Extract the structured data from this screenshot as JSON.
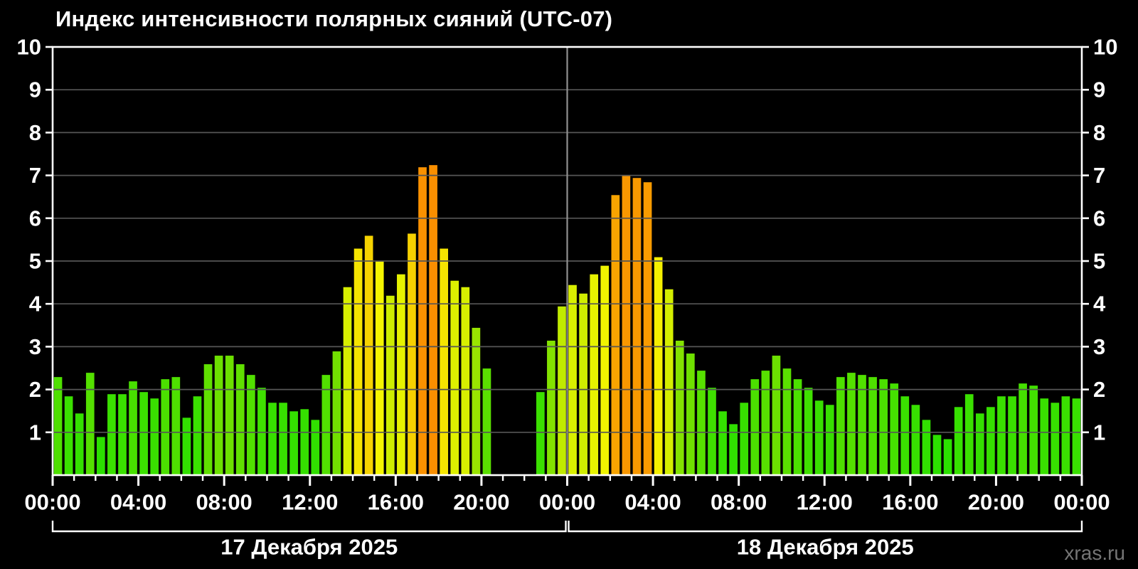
{
  "title": "Индекс интенсивности полярных сияний (UTC-07)",
  "watermark": "xras.ru",
  "colors": {
    "background": "#000000",
    "frame": "#ffffff",
    "gridline": "#565656",
    "day_separator": "#919191",
    "text": "#ffffff",
    "watermark_text": "#757575",
    "bar_low_green": "#33e200",
    "bar_mid_yellow": "#f2f000",
    "bar_gold": "#f6d000",
    "bar_peak_orange": "#f99400"
  },
  "chart_data": {
    "type": "bar",
    "title": "Индекс интенсивности полярных сияний (UTC-07)",
    "xlabel": "",
    "ylabel": "",
    "ylim": [
      0,
      10
    ],
    "y_ticks": [
      1,
      2,
      3,
      4,
      5,
      6,
      7,
      8,
      9,
      10
    ],
    "grid": "horizontal, drawn over bars",
    "legend": "none",
    "interval_minutes": 30,
    "x_tick_step_hours": 4,
    "x_tick_labels": [
      "00:00",
      "04:00",
      "08:00",
      "12:00",
      "16:00",
      "20:00",
      "00:00",
      "04:00",
      "08:00",
      "12:00",
      "16:00",
      "20:00",
      "00:00"
    ],
    "color_scale_hue_anchors": [
      [
        0,
        112
      ],
      [
        2,
        104
      ],
      [
        3,
        88
      ],
      [
        4,
        70
      ],
      [
        5,
        60
      ],
      [
        5.7,
        50
      ],
      [
        6.5,
        40
      ],
      [
        7.3,
        34
      ],
      [
        10,
        20
      ]
    ],
    "color_scale_light_anchors": [
      [
        0,
        44
      ],
      [
        3,
        44
      ],
      [
        5,
        48
      ],
      [
        7.3,
        49
      ],
      [
        10,
        49
      ]
    ],
    "days": [
      {
        "date_label": "17 Декабря 2025",
        "start_time": "00:00",
        "values": [
          2.3,
          1.85,
          1.45,
          2.4,
          0.9,
          1.9,
          1.9,
          2.2,
          1.95,
          1.8,
          2.25,
          2.3,
          1.35,
          1.85,
          2.6,
          2.8,
          2.8,
          2.6,
          2.35,
          2.05,
          1.7,
          1.7,
          1.5,
          1.55,
          1.3,
          2.35,
          2.9,
          4.4,
          5.3,
          5.6,
          5.0,
          4.2,
          4.7,
          5.65,
          7.2,
          7.25,
          5.3,
          4.55,
          4.4,
          3.45,
          2.5,
          null,
          null,
          null,
          null,
          1.95,
          3.15,
          3.95
        ]
      },
      {
        "date_label": "18 Декабря 2025",
        "start_time": "00:00",
        "values": [
          4.45,
          4.25,
          4.7,
          4.9,
          6.55,
          7.0,
          6.95,
          6.85,
          5.1,
          4.35,
          3.15,
          2.85,
          2.45,
          2.05,
          1.5,
          1.2,
          1.7,
          2.25,
          2.45,
          2.8,
          2.5,
          2.25,
          2.05,
          1.75,
          1.65,
          2.3,
          2.4,
          2.35,
          2.3,
          2.25,
          2.15,
          1.85,
          1.65,
          1.3,
          0.95,
          0.85,
          1.6,
          1.9,
          1.45,
          1.6,
          1.85,
          1.85,
          2.15,
          2.1,
          1.8,
          1.7,
          1.85,
          1.8
        ]
      }
    ]
  }
}
